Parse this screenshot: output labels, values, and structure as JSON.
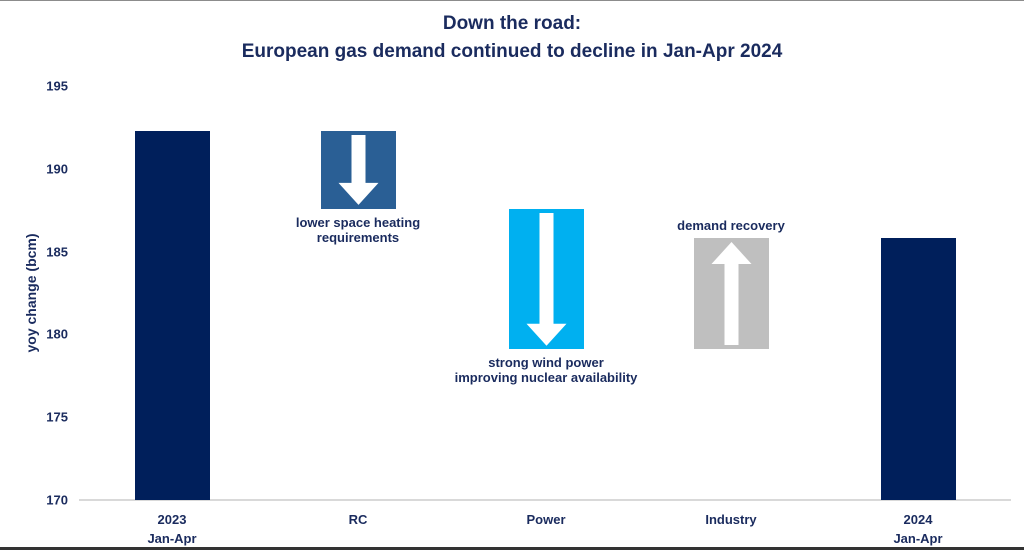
{
  "chart_data": {
    "type": "bar",
    "subtype": "waterfall",
    "title": "Down the road:",
    "subtitle": "European gas demand continued to decline in Jan-Apr 2024",
    "xlabel": "",
    "ylabel": "yoy change (bcm)",
    "ylim": [
      170,
      195
    ],
    "yticks": [
      170,
      175,
      180,
      185,
      190,
      195
    ],
    "grid": false,
    "legend": null,
    "categories": [
      "2023 Jan-Apr",
      "RC",
      "Power",
      "Industry",
      "2024 Jan-Apr"
    ],
    "category_lines": [
      [
        "2023",
        "Jan-Apr"
      ],
      [
        "RC"
      ],
      [
        "Power"
      ],
      [
        "Industry"
      ],
      [
        "2024",
        "Jan-Apr"
      ]
    ],
    "bars": [
      {
        "category": "2023 Jan-Apr",
        "kind": "total",
        "start": 170,
        "end": 192.3,
        "value": 192.3,
        "color": "#001f5b"
      },
      {
        "category": "RC",
        "kind": "decrease",
        "start": 192.3,
        "end": 187.6,
        "value": -4.7,
        "color": "#2a5f95",
        "arrow": "down"
      },
      {
        "category": "Power",
        "kind": "decrease",
        "start": 187.6,
        "end": 179.1,
        "value": -8.5,
        "color": "#00b0f0",
        "arrow": "down"
      },
      {
        "category": "Industry",
        "kind": "increase",
        "start": 179.1,
        "end": 185.8,
        "value": 6.7,
        "color": "#bfbfbf",
        "arrow": "up"
      },
      {
        "category": "2024 Jan-Apr",
        "kind": "total",
        "start": 170,
        "end": 185.8,
        "value": 185.8,
        "color": "#001f5b"
      }
    ],
    "annotations": [
      {
        "category": "RC",
        "lines": [
          "lower space heating",
          "requirements"
        ],
        "position": "below"
      },
      {
        "category": "Power",
        "lines": [
          "strong wind power",
          "improving nuclear availability"
        ],
        "position": "below"
      },
      {
        "category": "Industry",
        "lines": [
          "demand recovery"
        ],
        "position": "above"
      }
    ]
  },
  "colors": {
    "text": "#1a2b5e",
    "total_bar": "#001f5b",
    "rc_bar": "#2a5f95",
    "power_bar": "#00b0f0",
    "industry_bar": "#bfbfbf",
    "axis": "#d9d9d9"
  }
}
